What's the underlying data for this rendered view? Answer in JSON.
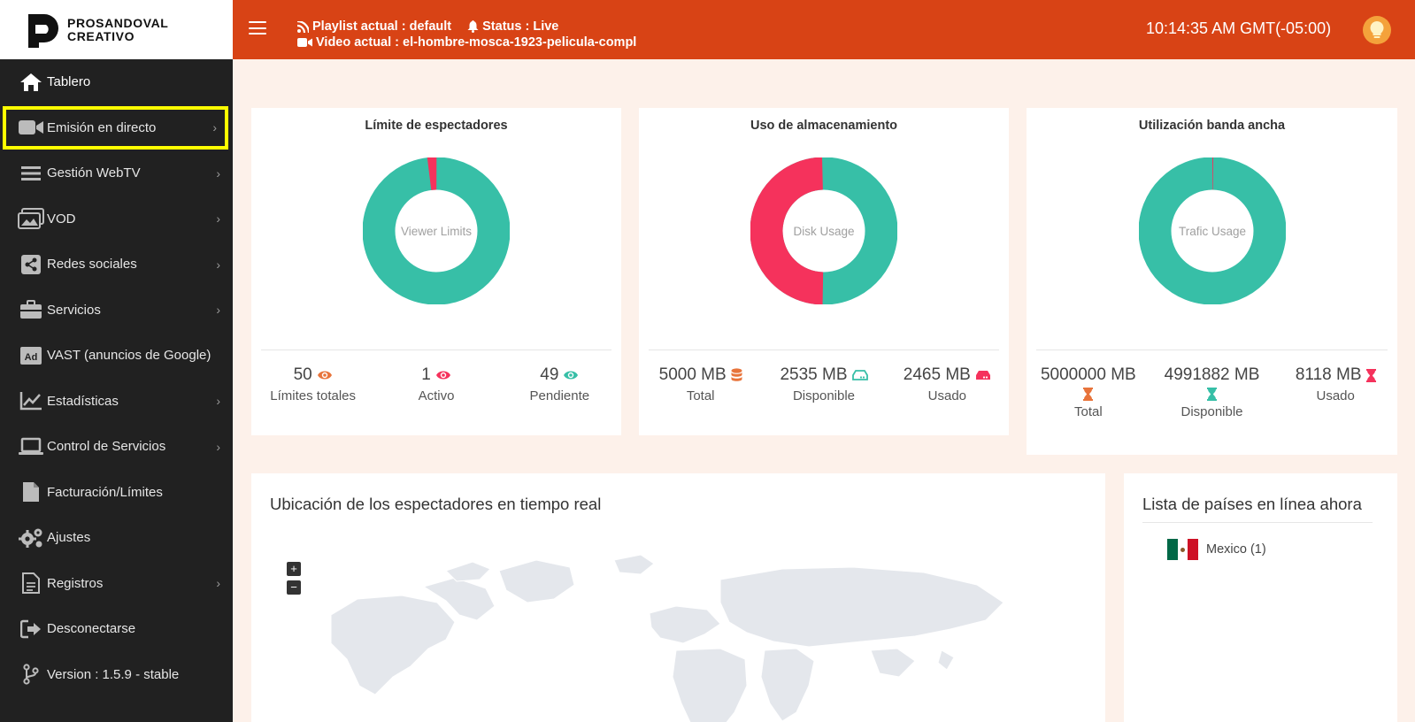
{
  "brand": {
    "line1": "PROSANDOVAL",
    "line2": "CREATIVO"
  },
  "header": {
    "playlist": "Playlist actual : default",
    "status": "Status : Live",
    "video": "Video actual : el-hombre-mosca-1923-pelicula-compl",
    "clock": "10:14:35 AM GMT(-05:00)"
  },
  "sidebar": {
    "items": [
      {
        "label": "Tablero",
        "icon": "home-icon",
        "chevron": false
      },
      {
        "label": "Emisión en directo",
        "icon": "video-camera-icon",
        "chevron": true
      },
      {
        "label": "Gestión WebTV",
        "icon": "list-icon",
        "chevron": true
      },
      {
        "label": "VOD",
        "icon": "images-icon",
        "chevron": true
      },
      {
        "label": "Redes sociales",
        "icon": "share-icon",
        "chevron": true
      },
      {
        "label": "Servicios",
        "icon": "briefcase-icon",
        "chevron": true
      },
      {
        "label": "VAST (anuncios de Google)",
        "icon": "ad-icon",
        "chevron": false
      },
      {
        "label": "Estadísticas",
        "icon": "chart-icon",
        "chevron": true
      },
      {
        "label": "Control de Servicios",
        "icon": "laptop-icon",
        "chevron": true
      },
      {
        "label": "Facturación/Límites",
        "icon": "file-icon",
        "chevron": false
      },
      {
        "label": "Ajustes",
        "icon": "gears-icon",
        "chevron": false
      },
      {
        "label": "Registros",
        "icon": "document-icon",
        "chevron": true
      },
      {
        "label": "Desconectarse",
        "icon": "sign-out-icon",
        "chevron": false
      },
      {
        "label": "Version : 1.5.9 - stable",
        "icon": "branch-icon",
        "chevron": false
      }
    ]
  },
  "cards": {
    "viewers": {
      "title": "Límite de espectadores",
      "center": "Viewer Limits",
      "stats": [
        {
          "value": "50",
          "label": "Límites totales"
        },
        {
          "value": "1",
          "label": "Activo"
        },
        {
          "value": "49",
          "label": "Pendiente"
        }
      ]
    },
    "storage": {
      "title": "Uso de almacenamiento",
      "center": "Disk Usage",
      "stats": [
        {
          "value": "5000 MB",
          "label": "Total"
        },
        {
          "value": "2535 MB",
          "label": "Disponible"
        },
        {
          "value": "2465 MB",
          "label": "Usado"
        }
      ]
    },
    "bandwidth": {
      "title": "Utilización banda ancha",
      "center": "Trafic Usage",
      "stats": [
        {
          "value": "5000000 MB",
          "label": "Total"
        },
        {
          "value": "4991882 MB",
          "label": "Disponible"
        },
        {
          "value": "8118 MB",
          "label": "Usado"
        }
      ]
    }
  },
  "colors": {
    "teal": "#37bfa7",
    "red": "#f5325c",
    "orange": "#e8743b",
    "header": "#d84315"
  },
  "map": {
    "title": "Ubicación de los espectadores en tiempo real",
    "zoom_in": "+",
    "zoom_out": "−"
  },
  "countries": {
    "title": "Lista de países en línea ahora",
    "items": [
      {
        "name": "Mexico (1)"
      }
    ]
  }
}
